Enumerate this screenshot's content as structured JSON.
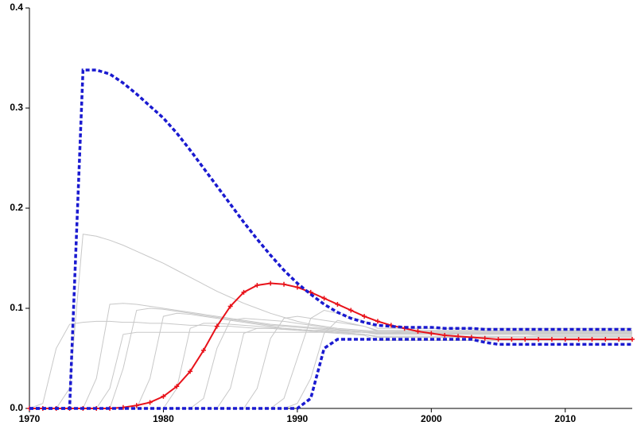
{
  "chart_data": {
    "type": "line",
    "x": [
      1970,
      1971,
      1972,
      1973,
      1974,
      1975,
      1976,
      1977,
      1978,
      1979,
      1980,
      1981,
      1982,
      1983,
      1984,
      1985,
      1986,
      1987,
      1988,
      1989,
      1990,
      1991,
      1992,
      1993,
      1994,
      1995,
      1996,
      1997,
      1998,
      1999,
      2000,
      2001,
      2002,
      2003,
      2004,
      2005,
      2006,
      2007,
      2008,
      2009,
      2010,
      2011,
      2012,
      2013,
      2014,
      2015
    ],
    "xlim": [
      1970,
      2015
    ],
    "xticks": [
      1970,
      1980,
      1990,
      2000,
      2010
    ],
    "ylim": [
      0,
      0.4
    ],
    "yticks": [
      {
        "value": 0,
        "label": "0.0"
      },
      0.1,
      0.2,
      0.3,
      0.4
    ],
    "series": [
      {
        "color": "#c8c8c8",
        "values": [
          0,
          0.005,
          0.06,
          0.084,
          0.086,
          0.087,
          0.087,
          0.086,
          0.086,
          0.085,
          0.085,
          0.084,
          0.083,
          0.083,
          0.082,
          0.082,
          0.081,
          0.08,
          0.08,
          0.079,
          0.079,
          0.078,
          0.078,
          0.077,
          0.077,
          0.076,
          0.076,
          0.076,
          0.075,
          0.075,
          0.075,
          0.075,
          0.074,
          0.074,
          0.074,
          0.074,
          0.074,
          0.074,
          0.073,
          0.073,
          0.073,
          0.073,
          0.073,
          0.073,
          0.073,
          0.073
        ]
      },
      {
        "color": "#c8c8c8",
        "values": [
          0,
          0,
          0,
          0.02,
          0.174,
          0.172,
          0.168,
          0.163,
          0.157,
          0.151,
          0.145,
          0.138,
          0.131,
          0.124,
          0.117,
          0.111,
          0.105,
          0.1,
          0.095,
          0.091,
          0.087,
          0.084,
          0.082,
          0.08,
          0.079,
          0.078,
          0.077,
          0.077,
          0.076,
          0.076,
          0.076,
          0.076,
          0.076,
          0.076,
          0.076,
          0.076,
          0.076,
          0.076,
          0.076,
          0.076,
          0.076,
          0.076,
          0.076,
          0.076,
          0.076,
          0.076
        ]
      },
      {
        "color": "#c8c8c8",
        "values": [
          0,
          0,
          0,
          0,
          0,
          0.03,
          0.104,
          0.105,
          0.104,
          0.102,
          0.1,
          0.098,
          0.096,
          0.094,
          0.092,
          0.09,
          0.088,
          0.086,
          0.084,
          0.083,
          0.082,
          0.081,
          0.08,
          0.079,
          0.078,
          0.077,
          0.076,
          0.076,
          0.076,
          0.076,
          0.076,
          0.076,
          0.076,
          0.076,
          0.076,
          0.076,
          0.076,
          0.076,
          0.076,
          0.076,
          0.076,
          0.076,
          0.076,
          0.076,
          0.076,
          0.076
        ]
      },
      {
        "color": "#c8c8c8",
        "values": [
          0,
          0,
          0,
          0,
          0,
          0,
          0,
          0.04,
          0.098,
          0.1,
          0.099,
          0.097,
          0.095,
          0.093,
          0.091,
          0.089,
          0.087,
          0.085,
          0.083,
          0.082,
          0.081,
          0.08,
          0.079,
          0.078,
          0.077,
          0.076,
          0.075,
          0.075,
          0.075,
          0.075,
          0.075,
          0.075,
          0.075,
          0.075,
          0.075,
          0.075,
          0.075,
          0.075,
          0.075,
          0.075,
          0.075,
          0.075,
          0.075,
          0.075,
          0.075,
          0.075
        ]
      },
      {
        "color": "#c8c8c8",
        "values": [
          0,
          0,
          0,
          0,
          0,
          0,
          0,
          0,
          0,
          0.03,
          0.092,
          0.095,
          0.094,
          0.092,
          0.09,
          0.088,
          0.086,
          0.084,
          0.082,
          0.08,
          0.079,
          0.078,
          0.077,
          0.076,
          0.075,
          0.074,
          0.072,
          0.072,
          0.072,
          0.072,
          0.072,
          0.072,
          0.072,
          0.072,
          0.072,
          0.072,
          0.072,
          0.072,
          0.072,
          0.072,
          0.072,
          0.072,
          0.072,
          0.072,
          0.072,
          0.072
        ]
      },
      {
        "color": "#c8c8c8",
        "values": [
          0,
          0,
          0,
          0,
          0,
          0,
          0,
          0,
          0,
          0,
          0,
          0.02,
          0.08,
          0.085,
          0.085,
          0.084,
          0.083,
          0.082,
          0.081,
          0.08,
          0.079,
          0.078,
          0.077,
          0.076,
          0.075,
          0.074,
          0.071,
          0.071,
          0.071,
          0.071,
          0.071,
          0.071,
          0.071,
          0.071,
          0.071,
          0.071,
          0.071,
          0.071,
          0.071,
          0.071,
          0.071,
          0.071,
          0.071,
          0.071,
          0.071,
          0.071
        ]
      },
      {
        "color": "#c8c8c8",
        "values": [
          0,
          0,
          0,
          0,
          0,
          0,
          0,
          0,
          0,
          0,
          0,
          0,
          0,
          0.01,
          0.06,
          0.088,
          0.09,
          0.089,
          0.088,
          0.087,
          0.085,
          0.083,
          0.081,
          0.079,
          0.077,
          0.076,
          0.074,
          0.074,
          0.074,
          0.074,
          0.074,
          0.074,
          0.074,
          0.074,
          0.074,
          0.074,
          0.074,
          0.074,
          0.074,
          0.074,
          0.074,
          0.074,
          0.074,
          0.074,
          0.074,
          0.074
        ]
      },
      {
        "color": "#c8c8c8",
        "values": [
          0,
          0,
          0,
          0,
          0,
          0,
          0,
          0,
          0,
          0,
          0,
          0,
          0,
          0,
          0,
          0.02,
          0.075,
          0.08,
          0.08,
          0.079,
          0.078,
          0.077,
          0.076,
          0.075,
          0.074,
          0.073,
          0.068,
          0.068,
          0.068,
          0.068,
          0.068,
          0.068,
          0.068,
          0.068,
          0.068,
          0.068,
          0.068,
          0.068,
          0.068,
          0.068,
          0.068,
          0.068,
          0.068,
          0.068,
          0.068,
          0.068
        ]
      },
      {
        "color": "#c8c8c8",
        "values": [
          0,
          0,
          0,
          0,
          0,
          0,
          0,
          0,
          0,
          0,
          0,
          0,
          0,
          0,
          0,
          0,
          0,
          0.02,
          0.07,
          0.09,
          0.092,
          0.09,
          0.088,
          0.086,
          0.084,
          0.082,
          0.078,
          0.078,
          0.078,
          0.078,
          0.078,
          0.078,
          0.078,
          0.078,
          0.078,
          0.078,
          0.078,
          0.078,
          0.078,
          0.078,
          0.078,
          0.078,
          0.078,
          0.078,
          0.078,
          0.078
        ]
      },
      {
        "color": "#c8c8c8",
        "values": [
          0,
          0,
          0,
          0,
          0,
          0,
          0,
          0,
          0,
          0,
          0,
          0,
          0,
          0,
          0,
          0,
          0,
          0,
          0,
          0.01,
          0.05,
          0.09,
          0.098,
          0.095,
          0.091,
          0.087,
          0.08,
          0.08,
          0.08,
          0.08,
          0.08,
          0.08,
          0.08,
          0.08,
          0.08,
          0.08,
          0.08,
          0.08,
          0.08,
          0.08,
          0.08,
          0.08,
          0.08,
          0.08,
          0.08,
          0.08
        ]
      },
      {
        "color": "#c8c8c8",
        "values": [
          0,
          0,
          0,
          0,
          0,
          0,
          0,
          0,
          0,
          0,
          0,
          0,
          0,
          0,
          0,
          0,
          0,
          0,
          0,
          0,
          0.005,
          0.03,
          0.075,
          0.088,
          0.085,
          0.082,
          0.077,
          0.077,
          0.077,
          0.077,
          0.077,
          0.077,
          0.077,
          0.077,
          0.077,
          0.077,
          0.077,
          0.077,
          0.077,
          0.077,
          0.077,
          0.077,
          0.077,
          0.077,
          0.077,
          0.077
        ]
      },
      {
        "color": "#c8c8c8",
        "values": [
          0,
          0,
          0,
          0,
          0,
          0,
          0.02,
          0.074,
          0.076,
          0.076,
          0.076,
          0.076,
          0.076,
          0.076,
          0.076,
          0.076,
          0.076,
          0.076,
          0.076,
          0.076,
          0.076,
          0.076,
          0.076,
          0.076,
          0.076,
          0.076,
          0.075,
          0.075,
          0.075,
          0.075,
          0.075,
          0.075,
          0.075,
          0.075,
          0.075,
          0.075,
          0.075,
          0.075,
          0.075,
          0.075,
          0.075,
          0.075,
          0.075,
          0.075,
          0.075,
          0.075
        ]
      },
      {
        "color": "#e8121a",
        "markers": true,
        "values": [
          0,
          0,
          0,
          0,
          0,
          0,
          0,
          0.001,
          0.003,
          0.006,
          0.012,
          0.022,
          0.037,
          0.058,
          0.082,
          0.102,
          0.116,
          0.123,
          0.125,
          0.124,
          0.121,
          0.116,
          0.11,
          0.104,
          0.098,
          0.092,
          0.087,
          0.083,
          0.08,
          0.077,
          0.075,
          0.073,
          0.072,
          0.071,
          0.07,
          0.069,
          0.069,
          0.069,
          0.069,
          0.069,
          0.069,
          0.069,
          0.069,
          0.069,
          0.069,
          0.069
        ]
      },
      {
        "color": "#1a1ad0",
        "dashed": true,
        "values": [
          0,
          0,
          0,
          0,
          0.338,
          0.338,
          0.334,
          0.325,
          0.314,
          0.302,
          0.29,
          0.275,
          0.258,
          0.24,
          0.222,
          0.204,
          0.186,
          0.169,
          0.153,
          0.138,
          0.125,
          0.114,
          0.104,
          0.096,
          0.09,
          0.086,
          0.083,
          0.082,
          0.081,
          0.081,
          0.081,
          0.08,
          0.08,
          0.08,
          0.079,
          0.079,
          0.079,
          0.079,
          0.079,
          0.079,
          0.079,
          0.079,
          0.079,
          0.079,
          0.079,
          0.079
        ]
      },
      {
        "color": "#1a1ad0",
        "dashed": true,
        "values": [
          0,
          0,
          0,
          0,
          0,
          0,
          0,
          0,
          0,
          0,
          0,
          0,
          0,
          0,
          0,
          0,
          0,
          0,
          0,
          0,
          0,
          0.01,
          0.06,
          0.069,
          0.069,
          0.069,
          0.069,
          0.069,
          0.069,
          0.069,
          0.069,
          0.069,
          0.069,
          0.069,
          0.066,
          0.064,
          0.064,
          0.064,
          0.064,
          0.064,
          0.064,
          0.064,
          0.064,
          0.064,
          0.064,
          0.064
        ]
      }
    ]
  }
}
